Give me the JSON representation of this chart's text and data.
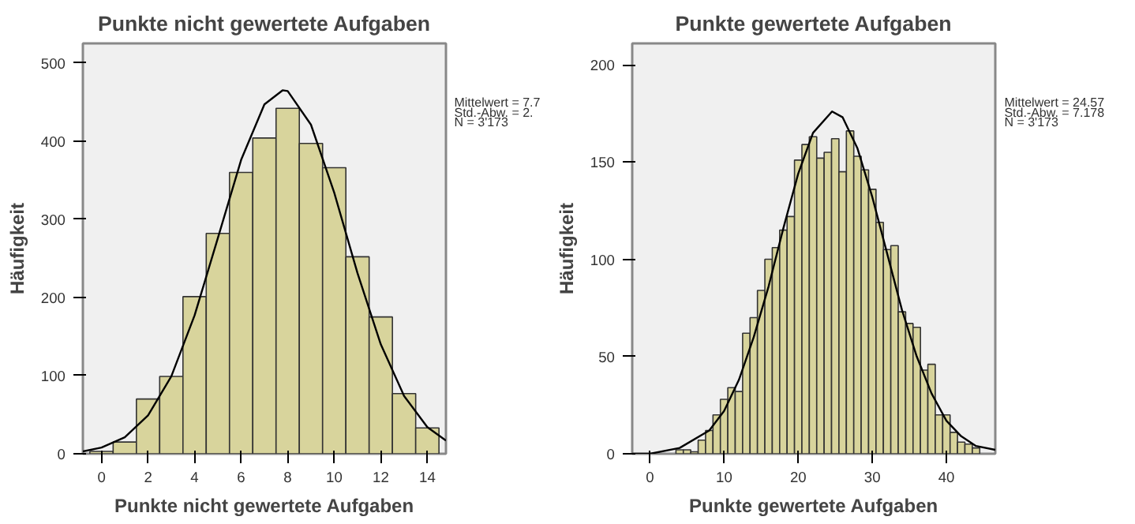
{
  "chart_data": [
    {
      "type": "histogram",
      "title": "Punkte nicht gewertete Aufgaben",
      "xlabel": "Punkte nicht gewertete Aufgaben",
      "ylabel": "Häufigkeit",
      "bins": [
        -0.5,
        0.5,
        1.5,
        2.5,
        3.5,
        4.5,
        5.5,
        6.5,
        7.5,
        8.5,
        9.5,
        10.5,
        11.5,
        12.5,
        13.5,
        14.5
      ],
      "values": [
        3,
        15,
        70,
        99,
        201,
        282,
        360,
        404,
        442,
        397,
        366,
        252,
        175,
        77,
        33
      ],
      "color": "#d8d49c",
      "series": [
        {
          "type": "line",
          "color": "#000000",
          "x": [
            -0.8,
            0,
            1,
            2,
            3,
            4,
            5,
            6,
            7,
            7.78,
            8,
            9,
            10,
            11,
            12,
            13,
            14,
            14.8
          ],
          "values": [
            3,
            8,
            21,
            49,
            99,
            177,
            276,
            376,
            447,
            465,
            464,
            421,
            334,
            231,
            140,
            74,
            34,
            17
          ]
        }
      ],
      "xlim": [
        -0.8,
        14.8
      ],
      "ylim": [
        0,
        525
      ],
      "xticks": [
        0,
        2,
        4,
        6,
        8,
        10,
        12,
        14
      ],
      "yticks": [
        0,
        100,
        200,
        300,
        400,
        500
      ],
      "annotations": [
        "Mittelwert = 7.7",
        "Std.-Abw. = 2.",
        "N = 3'173"
      ],
      "grid": false
    },
    {
      "type": "histogram",
      "title": "Punkte gewertete Aufgaben",
      "xlabel": "Punkte gewertete Aufgaben",
      "ylabel": "Häufigkeit",
      "bins": [
        3.5,
        4.5,
        5.5,
        6.5,
        7.5,
        8.5,
        9.5,
        10.5,
        11.5,
        12.5,
        13.5,
        14.5,
        15.5,
        16.5,
        17.5,
        18.5,
        19.5,
        20.5,
        21.5,
        22.5,
        23.5,
        24.5,
        25.5,
        26.5,
        27.5,
        28.5,
        29.5,
        30.5,
        31.5,
        32.5,
        33.5,
        34.5,
        35.5,
        36.5,
        37.5,
        38.5,
        39.5,
        40.5,
        41.5,
        42.5,
        43.5,
        44.5
      ],
      "values": [
        2,
        2,
        1,
        7,
        12,
        20,
        28,
        34,
        32,
        62,
        70,
        84,
        100,
        106,
        115,
        122,
        151,
        159,
        163,
        152,
        155,
        162,
        145,
        166,
        153,
        146,
        136,
        119,
        105,
        107,
        73,
        67,
        65,
        43,
        46,
        20,
        20,
        11,
        6,
        5,
        3
      ],
      "color": "#d8d49c",
      "series": [
        {
          "type": "line",
          "color": "#000000",
          "x": [
            -2.4,
            0,
            4,
            8,
            10,
            12,
            14,
            16,
            18,
            20,
            22,
            24.57,
            26,
            28,
            30,
            32,
            34,
            36,
            38,
            40,
            42,
            44,
            46.6
          ],
          "values": [
            0,
            0,
            3,
            12,
            22,
            38,
            60,
            86,
            116,
            144,
            165,
            176,
            173,
            157,
            132,
            103,
            74,
            50,
            31,
            17,
            9,
            4,
            2
          ]
        }
      ],
      "xlim": [
        -2.4,
        46.6
      ],
      "ylim": [
        0,
        211
      ],
      "xticks": [
        0,
        10,
        20,
        30,
        40
      ],
      "yticks": [
        0,
        50,
        100,
        150,
        200
      ],
      "annotations": [
        "Mittelwert = 24.57",
        "Std.-Abw. = 7.178",
        "N = 3'173"
      ],
      "grid": false
    }
  ]
}
